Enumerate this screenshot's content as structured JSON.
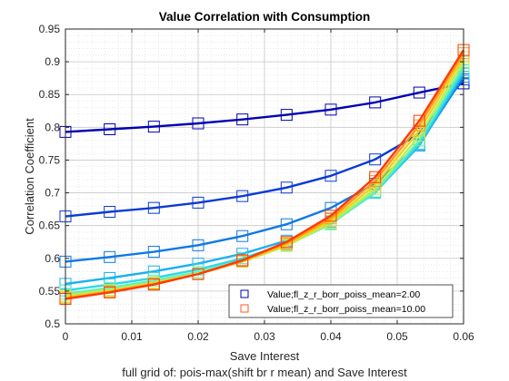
{
  "chart_data": {
    "type": "line",
    "title": "Value Correlation with Consumption",
    "xlabel": "Save Interest",
    "ylabel": "Correlation Coefficient",
    "caption": "full grid of: pois-max(shift br r mean) and Save Interest",
    "xlim": [
      0,
      0.06
    ],
    "ylim": [
      0.5,
      0.95
    ],
    "x": [
      0,
      0.00667,
      0.01333,
      0.02,
      0.02667,
      0.03333,
      0.04,
      0.04667,
      0.05333,
      0.06
    ],
    "x_ticks": [
      0,
      0.01,
      0.02,
      0.03,
      0.04,
      0.05,
      0.06
    ],
    "x_tick_labels": [
      "0",
      "0.01",
      "0.02",
      "0.03",
      "0.04",
      "0.05",
      "0.06"
    ],
    "y_ticks": [
      0.5,
      0.55,
      0.6,
      0.65,
      0.7,
      0.75,
      0.8,
      0.85,
      0.9,
      0.95
    ],
    "y_tick_labels": [
      "0.5",
      "0.55",
      "0.6",
      "0.65",
      "0.7",
      "0.75",
      "0.8",
      "0.85",
      "0.9",
      "0.95"
    ],
    "grid": true,
    "minor_grid": true,
    "marker": "square",
    "legend_location": "bottom-right",
    "legend": [
      {
        "name": "Value;fl_z_r_borr_poiss_mean=2.00",
        "color": "#0000b3"
      },
      {
        "name": "Value;fl_z_r_borr_poiss_mean=10.00",
        "color": "#ff5a1a"
      }
    ],
    "series": [
      {
        "color": "#0000b3",
        "values": [
          0.793,
          0.797,
          0.801,
          0.806,
          0.812,
          0.819,
          0.827,
          0.838,
          0.853,
          0.867
        ]
      },
      {
        "color": "#0a3ad6",
        "values": [
          0.664,
          0.671,
          0.677,
          0.685,
          0.695,
          0.708,
          0.726,
          0.751,
          0.79,
          0.873
        ]
      },
      {
        "color": "#0f78e6",
        "values": [
          0.595,
          0.602,
          0.61,
          0.62,
          0.634,
          0.652,
          0.677,
          0.714,
          0.774,
          0.877
        ]
      },
      {
        "color": "#1ab0f0",
        "values": [
          0.561,
          0.57,
          0.58,
          0.592,
          0.607,
          0.627,
          0.656,
          0.701,
          0.772,
          0.882
        ]
      },
      {
        "color": "#2ed8e6",
        "values": [
          0.551,
          0.56,
          0.57,
          0.583,
          0.6,
          0.622,
          0.653,
          0.7,
          0.775,
          0.887
        ]
      },
      {
        "color": "#66f0b0",
        "values": [
          0.546,
          0.555,
          0.566,
          0.579,
          0.597,
          0.62,
          0.652,
          0.702,
          0.78,
          0.893
        ]
      },
      {
        "color": "#b3f05a",
        "values": [
          0.543,
          0.552,
          0.563,
          0.577,
          0.595,
          0.619,
          0.654,
          0.706,
          0.787,
          0.9
        ]
      },
      {
        "color": "#f0d21a",
        "values": [
          0.541,
          0.55,
          0.562,
          0.576,
          0.595,
          0.621,
          0.657,
          0.712,
          0.795,
          0.907
        ]
      },
      {
        "color": "#ff9a1a",
        "values": [
          0.539,
          0.549,
          0.561,
          0.576,
          0.596,
          0.623,
          0.661,
          0.718,
          0.803,
          0.913
        ]
      },
      {
        "color": "#ff3a0a",
        "values": [
          0.538,
          0.548,
          0.56,
          0.576,
          0.597,
          0.625,
          0.665,
          0.724,
          0.81,
          0.918
        ]
      }
    ]
  }
}
